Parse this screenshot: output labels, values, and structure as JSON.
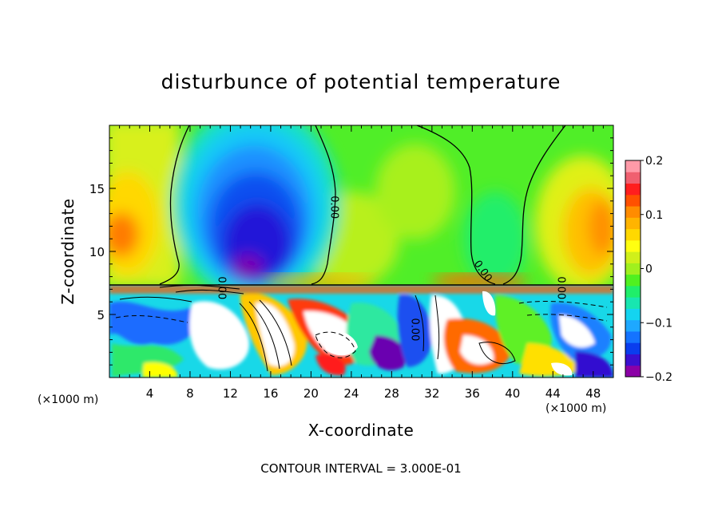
{
  "chart_data": {
    "type": "heatmap",
    "title": "disturbunce of potential temperature",
    "xlabel": "X-coordinate",
    "ylabel": "Z-coordinate",
    "x_unit_left": "(×1000 m)",
    "x_unit_right": "(×1000 m)",
    "xlim": [
      0,
      50
    ],
    "ylim": [
      0,
      20
    ],
    "x_ticks": [
      4,
      8,
      12,
      16,
      20,
      24,
      28,
      32,
      36,
      40,
      44,
      48
    ],
    "y_ticks": [
      5,
      10,
      15
    ],
    "colorbar": {
      "range": [
        -0.2,
        0.2
      ],
      "tick_values": [
        0.2,
        0.1,
        0,
        -0.1,
        -0.2
      ],
      "tick_labels": [
        "0.2",
        "0.1",
        "0",
        "−0.1",
        "−0.2"
      ],
      "colors": [
        "#8b00a6",
        "#3a10d0",
        "#0a3dee",
        "#1473ff",
        "#1ea8ff",
        "#14d4f0",
        "#18e6b0",
        "#20ee6a",
        "#50f020",
        "#a0f01e",
        "#d0f01a",
        "#ffff10",
        "#ffd800",
        "#ffb400",
        "#ff8c00",
        "#ff5000",
        "#ff1e1e",
        "#f06070",
        "#ff9aa8"
      ]
    },
    "contour_labels": [
      {
        "text": "0.00",
        "x": 22.0,
        "z": 13.5
      },
      {
        "text": "0.00",
        "x": 36.8,
        "z": 8.3
      },
      {
        "text": "0.00",
        "x": 10.8,
        "z": 7.1
      },
      {
        "text": "0.00",
        "x": 44.5,
        "z": 7.1
      },
      {
        "text": "0.00",
        "x": 30.0,
        "z": 3.8
      }
    ],
    "footer": "CONTOUR INTERVAL = 3.000E-01"
  }
}
